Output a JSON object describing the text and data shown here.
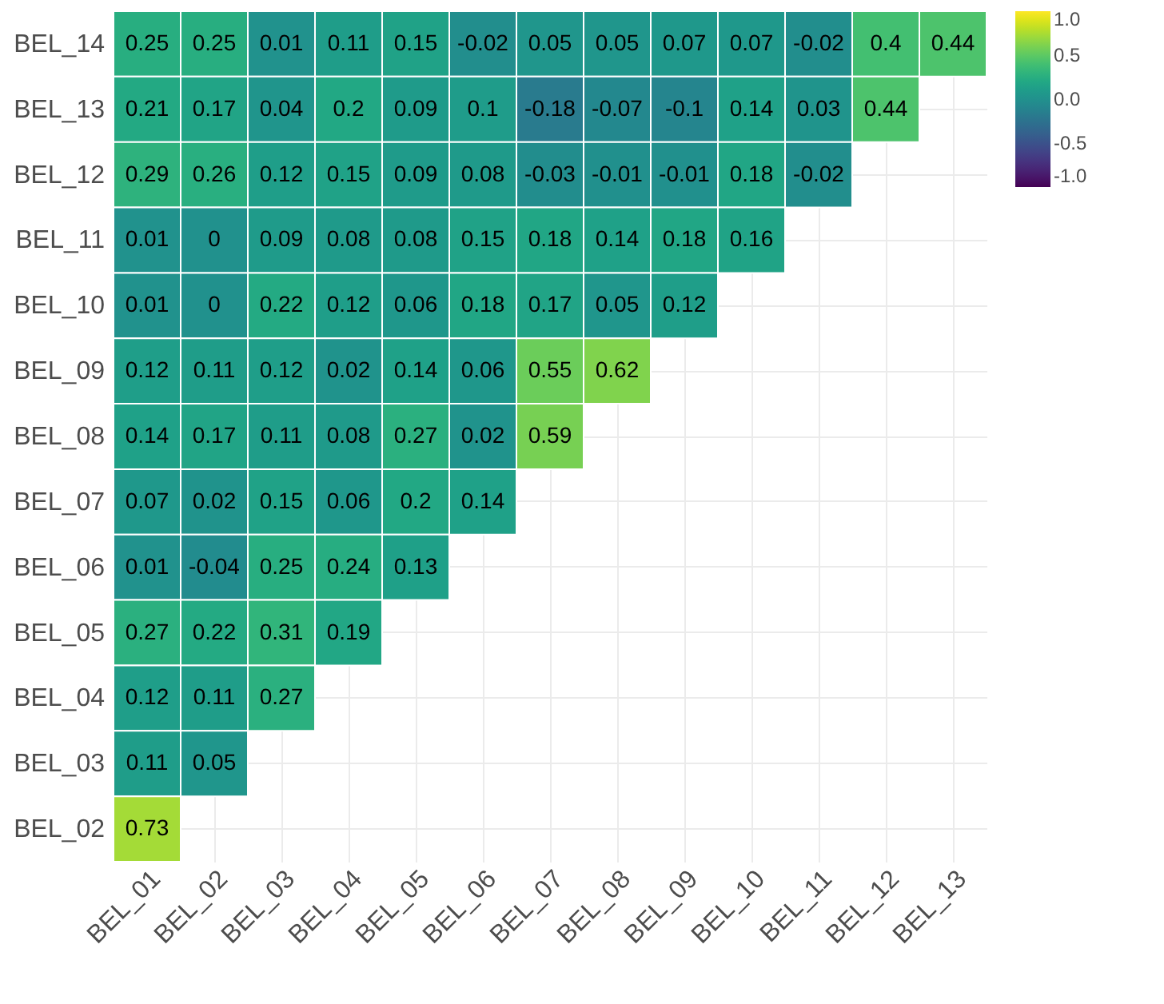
{
  "chart_data": {
    "type": "heatmap",
    "categories": [
      "BEL_01",
      "BEL_02",
      "BEL_03",
      "BEL_04",
      "BEL_05",
      "BEL_06",
      "BEL_07",
      "BEL_08",
      "BEL_09",
      "BEL_10",
      "BEL_11",
      "BEL_12",
      "BEL_13"
    ],
    "y_categories": [
      "BEL_14",
      "BEL_13",
      "BEL_12",
      "BEL_11",
      "BEL_10",
      "BEL_09",
      "BEL_08",
      "BEL_07",
      "BEL_06",
      "BEL_05",
      "BEL_04",
      "BEL_03",
      "BEL_02"
    ],
    "cells": [
      [
        0.25,
        0.25,
        0.01,
        0.11,
        0.15,
        -0.02,
        0.05,
        0.05,
        0.07,
        0.07,
        -0.02,
        0.4,
        0.44
      ],
      [
        0.21,
        0.17,
        0.04,
        0.2,
        0.09,
        0.1,
        -0.18,
        -0.07,
        -0.1,
        0.14,
        0.03,
        0.44,
        null
      ],
      [
        0.29,
        0.26,
        0.12,
        0.15,
        0.09,
        0.08,
        -0.03,
        -0.01,
        -0.01,
        0.18,
        -0.02,
        null,
        null
      ],
      [
        0.01,
        0,
        0.09,
        0.08,
        0.08,
        0.15,
        0.18,
        0.14,
        0.18,
        0.16,
        null,
        null,
        null
      ],
      [
        0.01,
        0,
        0.22,
        0.12,
        0.06,
        0.18,
        0.17,
        0.05,
        0.12,
        null,
        null,
        null,
        null
      ],
      [
        0.12,
        0.11,
        0.12,
        0.02,
        0.14,
        0.06,
        0.55,
        0.62,
        null,
        null,
        null,
        null,
        null
      ],
      [
        0.14,
        0.17,
        0.11,
        0.08,
        0.27,
        0.02,
        0.59,
        null,
        null,
        null,
        null,
        null,
        null
      ],
      [
        0.07,
        0.02,
        0.15,
        0.06,
        0.2,
        0.14,
        null,
        null,
        null,
        null,
        null,
        null,
        null
      ],
      [
        0.01,
        -0.04,
        0.25,
        0.24,
        0.13,
        null,
        null,
        null,
        null,
        null,
        null,
        null,
        null
      ],
      [
        0.27,
        0.22,
        0.31,
        0.19,
        null,
        null,
        null,
        null,
        null,
        null,
        null,
        null,
        null
      ],
      [
        0.12,
        0.11,
        0.27,
        null,
        null,
        null,
        null,
        null,
        null,
        null,
        null,
        null,
        null
      ],
      [
        0.11,
        0.05,
        null,
        null,
        null,
        null,
        null,
        null,
        null,
        null,
        null,
        null,
        null
      ],
      [
        0.73,
        null,
        null,
        null,
        null,
        null,
        null,
        null,
        null,
        null,
        null,
        null,
        null
      ]
    ],
    "clim": [
      -1,
      1
    ],
    "cticks": [
      {
        "value": -1,
        "label": "-1.0"
      },
      {
        "value": -0.5,
        "label": "-0.5"
      },
      {
        "value": 0,
        "label": "0.0"
      },
      {
        "value": 0.5,
        "label": "0.5"
      },
      {
        "value": 1,
        "label": "1.0"
      }
    ],
    "data_labels": true,
    "grid": true
  }
}
